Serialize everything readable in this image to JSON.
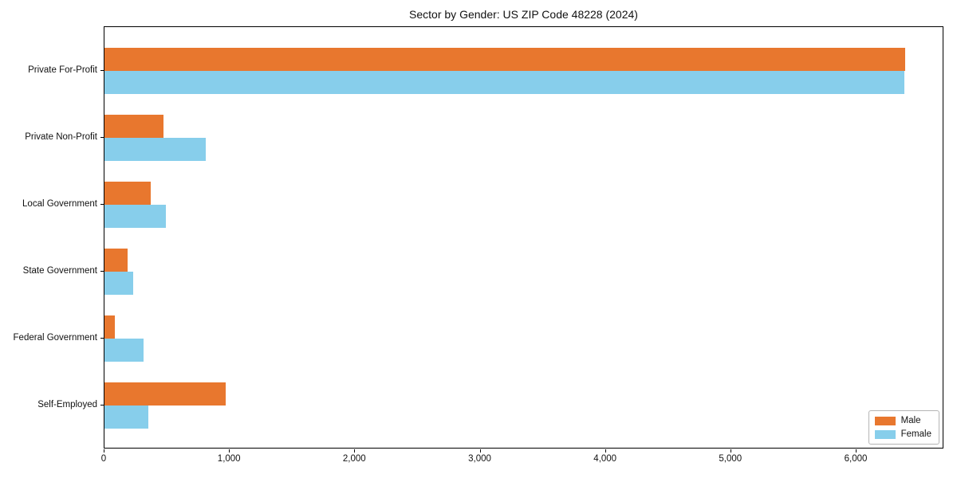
{
  "chart_data": {
    "type": "bar",
    "orientation": "horizontal",
    "title": "Sector by Gender: US ZIP Code 48228 (2024)",
    "categories": [
      "Private For-Profit",
      "Private Non-Profit",
      "Local Government",
      "State Government",
      "Federal Government",
      "Self-Employed"
    ],
    "series": [
      {
        "name": "Male",
        "color": "#E8772E",
        "values": [
          6390,
          470,
          370,
          185,
          85,
          965
        ]
      },
      {
        "name": "Female",
        "color": "#87CEEB",
        "values": [
          6380,
          805,
          490,
          230,
          310,
          350
        ]
      }
    ],
    "xlabel": "",
    "ylabel": "",
    "xlim": [
      0,
      6700
    ],
    "xticks": [
      0,
      1000,
      2000,
      3000,
      4000,
      5000,
      6000
    ],
    "xtick_labels": [
      "0",
      "1,000",
      "2,000",
      "3,000",
      "4,000",
      "5,000",
      "6,000"
    ],
    "grid": false,
    "legend": {
      "position": "lower-right"
    }
  }
}
